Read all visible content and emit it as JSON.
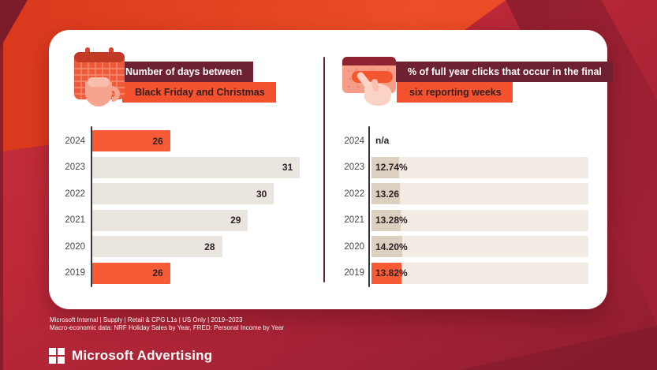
{
  "card": {
    "left": {
      "banner_line1": "Number of days between",
      "banner_line2": "Black Friday and Christmas",
      "icon": "calendar-mug-icon"
    },
    "right": {
      "banner_line1": "% of full year clicks that occur in the final",
      "banner_line2": "six reporting weeks",
      "icon": "click-card-icon"
    }
  },
  "chart_data": [
    {
      "type": "bar",
      "render": "value-bar",
      "orientation": "horizontal",
      "title": "Number of days between Black Friday and Christmas",
      "categories": [
        "2024",
        "2023",
        "2022",
        "2021",
        "2020",
        "2019"
      ],
      "values": [
        26,
        31,
        30,
        29,
        28,
        26
      ],
      "labels": [
        "26",
        "31",
        "30",
        "29",
        "28",
        "26"
      ],
      "highlight_indices": [
        0,
        5
      ],
      "axis_range": [
        23,
        31.6
      ],
      "bar_color_default": "#ebe5e0",
      "bar_color_highlight": "#f65b36",
      "grid": false,
      "legend": false,
      "xlabel": "",
      "ylabel": ""
    },
    {
      "type": "bar",
      "render": "track-bar",
      "orientation": "horizontal",
      "title": "% of full year clicks that occur in the final six reporting weeks",
      "categories": [
        "2024",
        "2023",
        "2022",
        "2021",
        "2020",
        "2019"
      ],
      "values": [
        null,
        12.74,
        13.26,
        13.28,
        14.2,
        13.82
      ],
      "labels": [
        "n/a",
        "12.74%",
        "13.26",
        "13.28%",
        "14.20%",
        "13.82%"
      ],
      "highlight_indices": [
        5
      ],
      "track_max": 100,
      "track_color": "#f3ece4",
      "segment_color_default": "#dcd0c0",
      "segment_color_highlight": "#f65b36",
      "grid": false,
      "legend": false,
      "xlabel": "",
      "ylabel": ""
    }
  ],
  "footer": {
    "line1": "Microsoft Internal | Supply | Retail & CPG L1s | US Only | 2019–2023",
    "line2": "Macro-economic data: NRF Holiday Sales by Year, FRED: Personal Income by Year"
  },
  "brand": {
    "name": "Microsoft Advertising"
  },
  "colors": {
    "accent_orange": "#f4512e",
    "banner_dark": "#6e2130",
    "background_red": "#b52438",
    "background_bright": "#ec4e27",
    "background_dark": "#7c1c2a"
  }
}
